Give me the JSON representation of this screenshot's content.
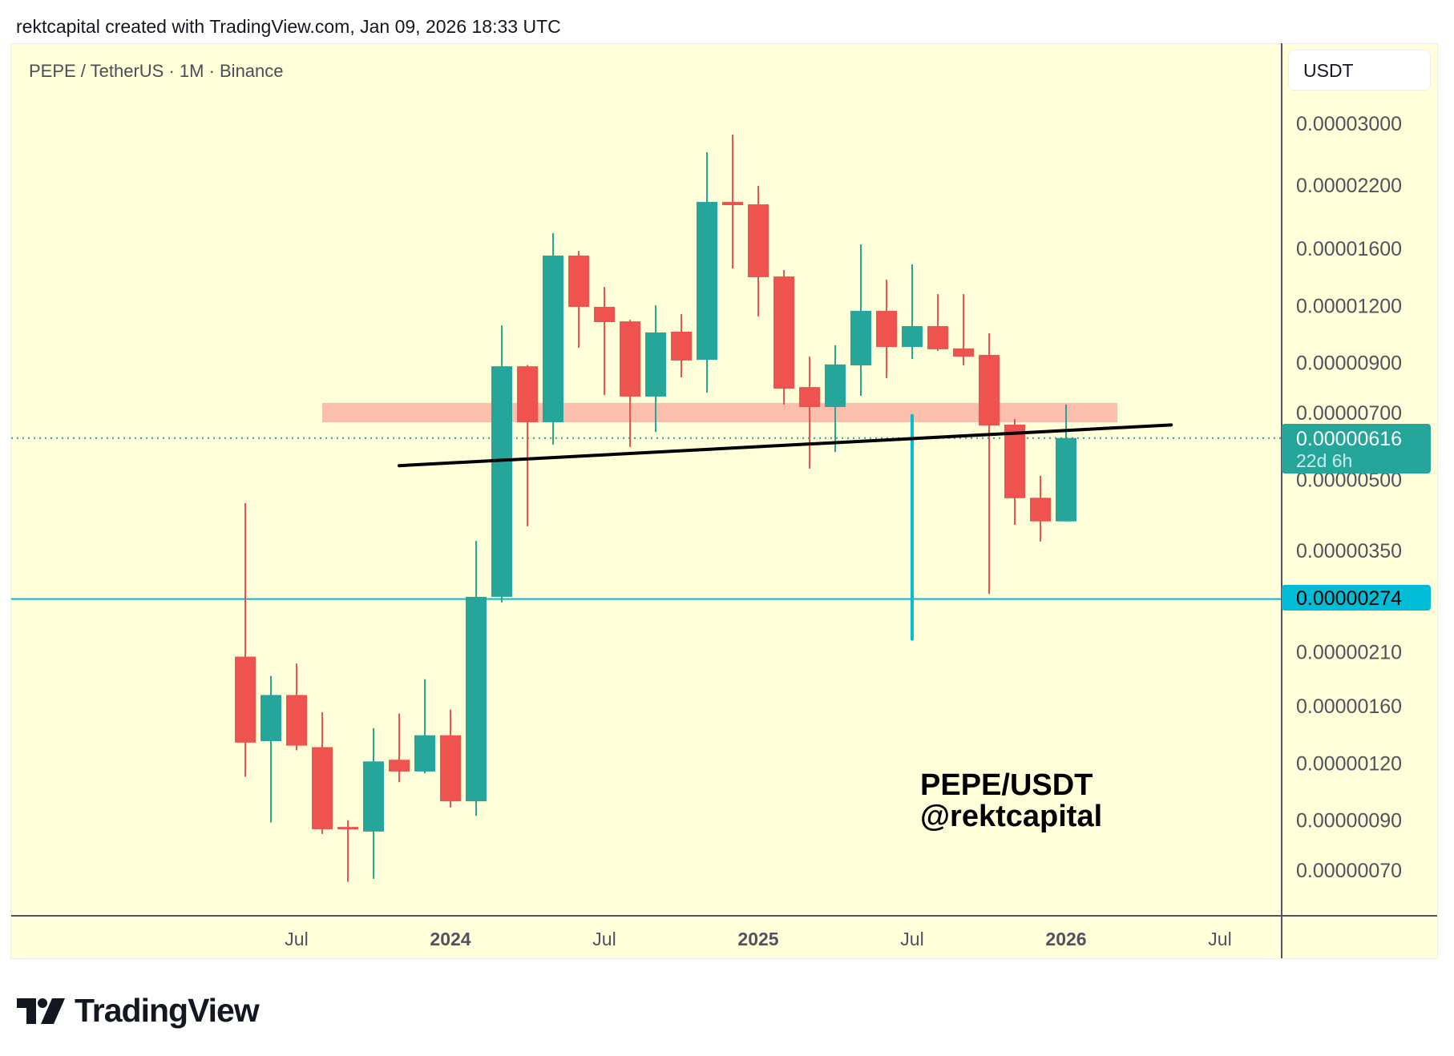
{
  "header": {
    "attribution": "rektcapital created with TradingView.com, Jan 09, 2026 18:33 UTC"
  },
  "symbol_title": "PEPE / TetherUS · 1M · Binance",
  "currency_button": "USDT",
  "watermark": {
    "line1": "PEPE/USDT",
    "line2": "@rektcapital"
  },
  "logo": {
    "text": "TradingView",
    "icon": "tradingview-logo-icon"
  },
  "colors": {
    "up": "#26a69a",
    "down": "#ef5350",
    "background": "#ffffd9",
    "cyan": "#00bcd4",
    "zone": "#fbbfac",
    "trendline": "#000000"
  },
  "chart_data": {
    "type": "candlestick",
    "scale": "log",
    "unit": "USDT",
    "interval": "1M",
    "price_multiplier": 1e-06,
    "y_ticks": [
      "0.00003000",
      "0.00002200",
      "0.00001600",
      "0.00001200",
      "0.00000900",
      "0.00000700",
      "0.00000500",
      "0.00000350",
      "0.00000210",
      "0.00000160",
      "0.00000120",
      "0.00000090",
      "0.00000070"
    ],
    "y_tick_values": [
      30,
      22,
      16,
      12,
      9,
      7,
      5,
      3.5,
      2.1,
      1.6,
      1.2,
      0.9,
      0.7
    ],
    "x_ticks": [
      {
        "label": "Jul",
        "index": 2,
        "bold": false
      },
      {
        "label": "2024",
        "index": 8,
        "bold": true
      },
      {
        "label": "Jul",
        "index": 14,
        "bold": false
      },
      {
        "label": "2025",
        "index": 20,
        "bold": true
      },
      {
        "label": "Jul",
        "index": 26,
        "bold": false
      },
      {
        "label": "2026",
        "index": 32,
        "bold": true
      },
      {
        "label": "Jul",
        "index": 38,
        "bold": false
      }
    ],
    "candles": [
      {
        "date": "2023-05",
        "o": 2.05,
        "h": 4.44,
        "l": 1.12,
        "c": 1.33
      },
      {
        "date": "2023-06",
        "o": 1.34,
        "h": 1.86,
        "l": 0.89,
        "c": 1.69
      },
      {
        "date": "2023-07",
        "o": 1.69,
        "h": 1.98,
        "l": 1.28,
        "c": 1.31
      },
      {
        "date": "2023-08",
        "o": 1.3,
        "h": 1.55,
        "l": 0.84,
        "c": 0.86
      },
      {
        "date": "2023-09",
        "o": 0.87,
        "h": 0.9,
        "l": 0.66,
        "c": 0.86
      },
      {
        "date": "2023-10",
        "o": 0.85,
        "h": 1.43,
        "l": 0.67,
        "c": 1.21
      },
      {
        "date": "2023-11",
        "o": 1.22,
        "h": 1.54,
        "l": 1.09,
        "c": 1.15
      },
      {
        "date": "2023-12",
        "o": 1.15,
        "h": 1.83,
        "l": 1.14,
        "c": 1.38
      },
      {
        "date": "2024-01",
        "o": 1.38,
        "h": 1.57,
        "l": 0.96,
        "c": 0.99
      },
      {
        "date": "2024-02",
        "o": 0.99,
        "h": 3.67,
        "l": 0.92,
        "c": 2.77
      },
      {
        "date": "2024-03",
        "o": 2.77,
        "h": 10.86,
        "l": 2.69,
        "c": 8.84
      },
      {
        "date": "2024-04",
        "o": 8.84,
        "h": 8.9,
        "l": 3.95,
        "c": 6.67
      },
      {
        "date": "2024-05",
        "o": 6.67,
        "h": 17.27,
        "l": 5.96,
        "c": 15.43
      },
      {
        "date": "2024-06",
        "o": 15.43,
        "h": 15.8,
        "l": 9.7,
        "c": 11.92
      },
      {
        "date": "2024-07",
        "o": 11.92,
        "h": 13.18,
        "l": 7.65,
        "c": 11.04
      },
      {
        "date": "2024-08",
        "o": 11.08,
        "h": 11.17,
        "l": 5.89,
        "c": 7.59
      },
      {
        "date": "2024-09",
        "o": 7.59,
        "h": 12.01,
        "l": 6.35,
        "c": 10.48
      },
      {
        "date": "2024-10",
        "o": 10.52,
        "h": 11.49,
        "l": 8.36,
        "c": 9.1
      },
      {
        "date": "2024-11",
        "o": 9.13,
        "h": 25.95,
        "l": 7.74,
        "c": 20.21
      },
      {
        "date": "2024-12",
        "o": 20.21,
        "h": 28.36,
        "l": 14.46,
        "c": 19.89
      },
      {
        "date": "2025-01",
        "o": 19.97,
        "h": 21.91,
        "l": 11.36,
        "c": 13.84
      },
      {
        "date": "2025-02",
        "o": 13.89,
        "h": 14.35,
        "l": 7.29,
        "c": 7.9
      },
      {
        "date": "2025-03",
        "o": 7.96,
        "h": 9.28,
        "l": 5.28,
        "c": 7.2
      },
      {
        "date": "2025-04",
        "o": 7.2,
        "h": 9.82,
        "l": 5.74,
        "c": 8.92
      },
      {
        "date": "2025-05",
        "o": 8.88,
        "h": 16.32,
        "l": 7.62,
        "c": 11.68
      },
      {
        "date": "2025-06",
        "o": 11.68,
        "h": 13.67,
        "l": 8.33,
        "c": 9.74
      },
      {
        "date": "2025-07",
        "o": 9.74,
        "h": 14.76,
        "l": 9.17,
        "c": 10.82
      },
      {
        "date": "2025-08",
        "o": 10.82,
        "h": 12.71,
        "l": 9.55,
        "c": 9.63
      },
      {
        "date": "2025-09",
        "o": 9.67,
        "h": 12.71,
        "l": 8.88,
        "c": 9.28
      },
      {
        "date": "2025-10",
        "o": 9.36,
        "h": 10.44,
        "l": 2.81,
        "c": 6.56
      },
      {
        "date": "2025-11",
        "o": 6.59,
        "h": 6.78,
        "l": 3.98,
        "c": 4.55
      },
      {
        "date": "2025-12",
        "o": 4.56,
        "h": 5.09,
        "l": 3.66,
        "c": 4.05
      },
      {
        "date": "2026-01",
        "o": 4.05,
        "h": 7.29,
        "l": 4.05,
        "c": 6.16
      }
    ],
    "last_price": {
      "label": "0.00000616",
      "value": 6.16,
      "countdown": "22d 6h"
    },
    "horizontal_level": {
      "label": "0.00000274",
      "value": 2.74
    },
    "resistance_zone": {
      "from_index": 3,
      "to_index": 34,
      "low": 6.67,
      "high": 7.35
    },
    "trendline": {
      "start": {
        "index": 6,
        "price": 5.36
      },
      "end": {
        "index": 36.1,
        "price": 6.58
      }
    },
    "vertical_marker": {
      "index": 26,
      "from": 2.24,
      "to": 6.9
    }
  }
}
